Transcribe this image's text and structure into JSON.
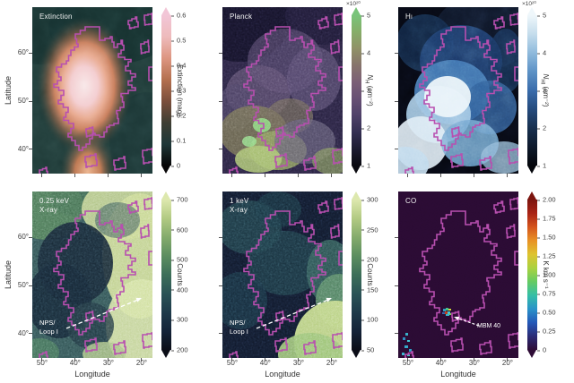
{
  "colors": {
    "contour": "#b84fb0",
    "annotation_text": "#ffffff",
    "figure_background": "#ffffff",
    "tick_text": "#3c3c3c"
  },
  "axes": {
    "x_label": "Longitude",
    "y_label": "Latitude",
    "x_tick_labels": [
      "50°",
      "40°",
      "30°",
      "20°"
    ],
    "y_tick_labels": [
      "60°",
      "50°",
      "40°"
    ]
  },
  "panels": [
    {
      "key": "extinction",
      "title_lines": [
        "Extinction"
      ],
      "colorbar": {
        "label": "Extinction (mag)",
        "tick_labels": [
          "0.6",
          "0.5",
          "0.4",
          "0.3",
          "0.2",
          "0.1",
          "0"
        ],
        "stops": [
          "#070607",
          "#1e3738",
          "#3f3f33",
          "#7b4f3c",
          "#b4704f",
          "#dd9681",
          "#eebbbc",
          "#f2c6d7"
        ]
      }
    },
    {
      "key": "planck",
      "title_lines": [
        "Planck"
      ],
      "colorbar": {
        "label_pre": "N",
        "label_sub": "H",
        "label_post": " (cm⁻²)",
        "exponent": "×10²⁰",
        "tick_labels": [
          "5",
          "4",
          "3",
          "2",
          "1"
        ],
        "stops": [
          "#0a0a10",
          "#1c1b31",
          "#342f52",
          "#4f4169",
          "#675074",
          "#7b5f76",
          "#87746c",
          "#909167",
          "#86ad68",
          "#79c47a"
        ]
      }
    },
    {
      "key": "hi",
      "title_pre": "H",
      "title_sub": "I",
      "colorbar": {
        "label_pre": "N",
        "label_sub": "HI",
        "label_post": " (cm⁻²)",
        "exponent": "×10²⁰",
        "tick_labels": [
          "5",
          "4",
          "3",
          "2",
          "1"
        ],
        "stops": [
          "#04060b",
          "#0e1a2c",
          "#18304f",
          "#254b7d",
          "#3a6cab",
          "#5d92c6",
          "#8fbadc",
          "#c5ddec",
          "#eff7fb"
        ]
      }
    },
    {
      "key": "xray-soft",
      "title_lines": [
        "0.25 keV",
        "X-ray"
      ],
      "annotation": {
        "lines": [
          "NPS/",
          "Loop I"
        ]
      },
      "colorbar": {
        "label": "Counts",
        "tick_labels": [
          "700",
          "600",
          "500",
          "400",
          "300",
          "200"
        ],
        "stops": [
          "#0b0d17",
          "#142338",
          "#1e3a4a",
          "#2b5356",
          "#3d6f59",
          "#5c8e60",
          "#84ab6c",
          "#b2ca83",
          "#dde8ae"
        ]
      }
    },
    {
      "key": "xray-hard",
      "title_lines": [
        "1 keV",
        "X-ray"
      ],
      "annotation": {
        "lines": [
          "NPS/",
          "Loop I"
        ]
      },
      "colorbar": {
        "label": "Counts",
        "tick_labels": [
          "300",
          "250",
          "200",
          "150",
          "100",
          "50"
        ],
        "stops": [
          "#0b0d17",
          "#142338",
          "#1e3a4a",
          "#2b5356",
          "#3d6f59",
          "#5c8e60",
          "#84ab6c",
          "#b2ca83",
          "#dde8ae"
        ]
      }
    },
    {
      "key": "co",
      "title_lines": [
        "CO"
      ],
      "annotation": {
        "lines": [
          "MBM 40"
        ]
      },
      "colorbar": {
        "label": "K km s⁻¹",
        "tick_labels": [
          "2.00",
          "1.75",
          "1.50",
          "1.25",
          "1.00",
          "0.75",
          "0.50",
          "0.25",
          "0"
        ],
        "stops": [
          "#2e0c36",
          "#2b2b76",
          "#2458b8",
          "#2a93c9",
          "#35bfa6",
          "#66cb62",
          "#abd23f",
          "#dec32f",
          "#e89125",
          "#d4541d",
          "#a82315",
          "#7c150f"
        ]
      }
    }
  ],
  "chart_data": [
    {
      "type": "heatmap",
      "title": "Extinction",
      "xlabel": "Longitude",
      "ylabel": "Latitude",
      "x_ticks_deg": [
        50,
        40,
        30,
        20
      ],
      "y_ticks_deg": [
        60,
        50,
        40
      ],
      "x_range_deg": [
        53,
        17
      ],
      "y_range_deg": [
        35,
        69
      ],
      "colorbar": {
        "label": "Extinction (mag)",
        "min": 0,
        "max": 0.6,
        "ticks": [
          0,
          0.1,
          0.2,
          0.3,
          0.4,
          0.5,
          0.6
        ]
      },
      "overlay": "magenta extinction contour",
      "notes": "bright pink central cloud on dark teal background"
    },
    {
      "type": "heatmap",
      "title": "Planck",
      "xlabel": "Longitude",
      "ylabel": "Latitude",
      "x_ticks_deg": [
        50,
        40,
        30,
        20
      ],
      "y_ticks_deg": [
        60,
        50,
        40
      ],
      "colorbar": {
        "label": "N_H (cm^-2)",
        "scale": "1e20",
        "min": 1,
        "max": 5,
        "ticks": [
          1,
          2,
          3,
          4,
          5
        ]
      },
      "overlay": "magenta extinction contour",
      "notes": "mottled purple/olive map, bright green patches lower centre, dark upper-left"
    },
    {
      "type": "heatmap",
      "title": "HI",
      "xlabel": "Longitude",
      "ylabel": "Latitude",
      "x_ticks_deg": [
        50,
        40,
        30,
        20
      ],
      "y_ticks_deg": [
        60,
        50,
        40
      ],
      "colorbar": {
        "label": "N_HI (cm^-2)",
        "scale": "1e20",
        "min": 1,
        "max": 5,
        "ticks": [
          1,
          2,
          3,
          4,
          5
        ]
      },
      "overlay": "magenta extinction contour",
      "notes": "blue-white cloudy emission, bright centre and bottom, dark top corners"
    },
    {
      "type": "heatmap",
      "title": "0.25 keV X-ray",
      "xlabel": "Longitude",
      "ylabel": "Latitude",
      "x_ticks_deg": [
        50,
        40,
        30,
        20
      ],
      "y_ticks_deg": [
        60,
        50,
        40
      ],
      "colorbar": {
        "label": "Counts",
        "min": 200,
        "max": 700,
        "ticks": [
          200,
          300,
          400,
          500,
          600,
          700
        ]
      },
      "annotations": [
        "NPS/Loop I dashed arrow"
      ],
      "overlay": "magenta extinction contour",
      "notes": "X-ray shadow: dark inside contour, bright band on right side"
    },
    {
      "type": "heatmap",
      "title": "1 keV X-ray",
      "xlabel": "Longitude",
      "ylabel": "Latitude",
      "x_ticks_deg": [
        50,
        40,
        30,
        20
      ],
      "y_ticks_deg": [
        60,
        50,
        40
      ],
      "colorbar": {
        "label": "Counts",
        "min": 50,
        "max": 300,
        "ticks": [
          50,
          100,
          150,
          200,
          250,
          300
        ]
      },
      "annotations": [
        "NPS/Loop I dashed arrow"
      ],
      "overlay": "magenta extinction contour",
      "notes": "mostly dark, bright green-yellow lower-right corner"
    },
    {
      "type": "heatmap",
      "title": "CO",
      "xlabel": "Longitude",
      "ylabel": "Latitude",
      "x_ticks_deg": [
        50,
        40,
        30,
        20
      ],
      "y_ticks_deg": [
        60,
        50,
        40
      ],
      "colorbar": {
        "label": "K km s^-1",
        "min": 0,
        "max": 2.0,
        "ticks": [
          0,
          0.25,
          0.5,
          0.75,
          1.0,
          1.25,
          1.5,
          1.75,
          2.0
        ]
      },
      "annotations": [
        "MBM 40 dashed arrow pointing to small CO clump"
      ],
      "overlay": "magenta extinction contour",
      "notes": "nearly empty dark-purple map, small bright CO clump (MBM 40) and specks in lower-left"
    }
  ]
}
